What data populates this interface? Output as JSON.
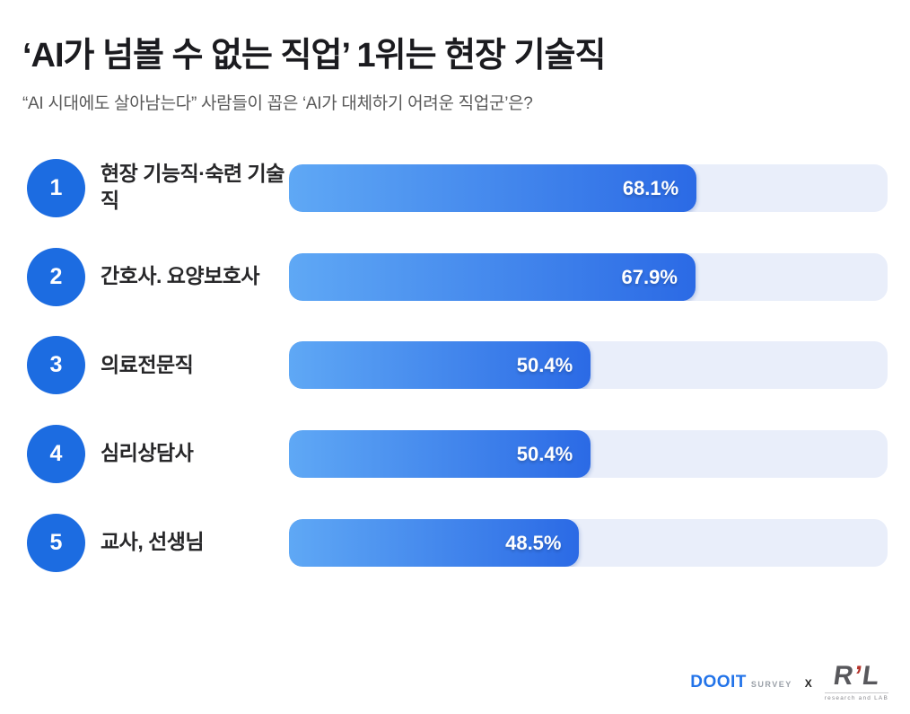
{
  "page": {
    "title": "‘AI가 넘볼 수 없는 직업’ 1위는 현장 기술직",
    "subtitle": "“AI 시대에도 살아남는다” 사람들이 꼽은 ‘AI가 대체하기 어려운 직업군’은?"
  },
  "chart_data": {
    "type": "bar",
    "orientation": "horizontal",
    "title": "‘AI가 넘볼 수 없는 직업’ 1위는 현장 기술직",
    "subtitle": "“AI 시대에도 살아남는다” 사람들이 꼽은 ‘AI가 대체하기 어려운 직업군’은?",
    "categories": [
      "현장 기능직·숙련 기술직",
      "간호사. 요양보호사",
      "의료전문직",
      "심리상담사",
      "교사, 선생님"
    ],
    "values": [
      68.1,
      67.9,
      50.4,
      50.4,
      48.5
    ],
    "value_labels": [
      "68.1%",
      "67.9%",
      "50.4%",
      "50.4%",
      "48.5%"
    ],
    "ranks": [
      1,
      2,
      3,
      4,
      5
    ],
    "xlim": [
      0,
      100
    ],
    "grid": false,
    "legend": false,
    "bar_gradient": [
      "#5FA8F5",
      "#2B6AE5"
    ],
    "track_color": "#E9EEFA",
    "rank_badge_color": "#1C6CE1"
  },
  "rows": [
    {
      "rank": "1",
      "label": "현장 기능직·숙련 기술직",
      "value": 68.1,
      "value_label": "68.1%"
    },
    {
      "rank": "2",
      "label": "간호사. 요양보호사",
      "value": 67.9,
      "value_label": "67.9%"
    },
    {
      "rank": "3",
      "label": "의료전문직",
      "value": 50.4,
      "value_label": "50.4%"
    },
    {
      "rank": "4",
      "label": "심리상담사",
      "value": 50.4,
      "value_label": "50.4%"
    },
    {
      "rank": "5",
      "label": "교사, 선생님",
      "value": 48.5,
      "value_label": "48.5%"
    }
  ],
  "footer": {
    "dooit": "DOOIT",
    "survey": "SURVEY",
    "x_label": "X",
    "rl_r": "R",
    "rl_apos": "’",
    "rl_l": "L",
    "rl_sub": "research and LAB"
  },
  "colors": {
    "title_text": "#1B1B1F",
    "subtitle_text": "#595959",
    "bar_fill_start": "#5FA8F5",
    "bar_fill_end": "#2B6AE5",
    "bar_track": "#E9EEFA",
    "rank_circle": "#1C6CE1",
    "value_text": "#FFFFFF",
    "dooit_blue": "#2273E9",
    "rl_gray": "#58585C",
    "rl_red": "#B5342C"
  }
}
